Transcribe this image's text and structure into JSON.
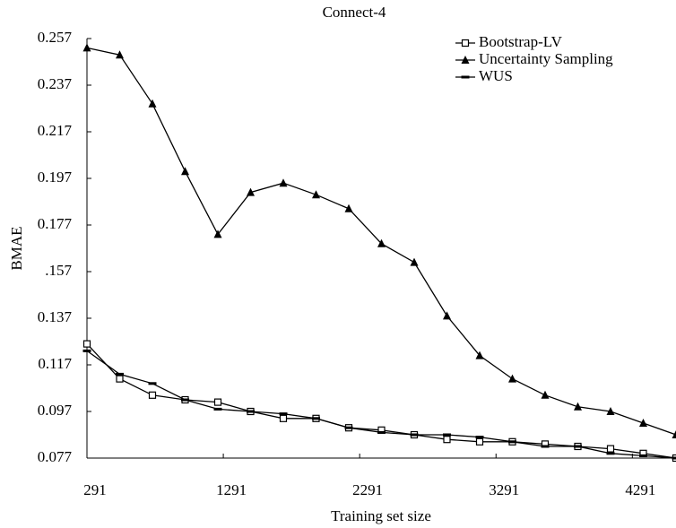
{
  "chart_data": {
    "type": "line",
    "title": "Connect-4",
    "xlabel": "Training set size",
    "ylabel": "BMAE",
    "x": [
      291,
      531,
      771,
      1011,
      1251,
      1491,
      1731,
      1971,
      2211,
      2451,
      2691,
      2931,
      3171,
      3411,
      3651,
      3891,
      4131,
      4371,
      4611
    ],
    "series": [
      {
        "name": "Bootstrap-LV",
        "color": "#000000",
        "marker": "square-open",
        "values": [
          0.126,
          0.111,
          0.104,
          0.102,
          0.101,
          0.097,
          0.094,
          0.094,
          0.09,
          0.089,
          0.087,
          0.085,
          0.084,
          0.084,
          0.083,
          0.082,
          0.081,
          0.079,
          0.077
        ]
      },
      {
        "name": "Uncertainty Sampling",
        "color": "#000000",
        "marker": "triangle",
        "values": [
          0.253,
          0.25,
          0.229,
          0.2,
          0.173,
          0.191,
          0.195,
          0.19,
          0.184,
          0.169,
          0.161,
          0.138,
          0.121,
          0.111,
          0.104,
          0.099,
          0.097,
          0.092,
          0.087
        ]
      },
      {
        "name": "WUS",
        "color": "#000000",
        "marker": "dash",
        "values": [
          0.123,
          0.113,
          0.109,
          0.102,
          0.098,
          0.097,
          0.096,
          0.094,
          0.09,
          0.088,
          0.087,
          0.087,
          0.086,
          0.084,
          0.082,
          0.082,
          0.079,
          0.078,
          0.077
        ]
      }
    ],
    "xlim": [
      291,
      4611
    ],
    "xticks": [
      291,
      1291,
      2291,
      3291,
      4291
    ],
    "ylim": [
      0.077,
      0.257
    ],
    "yticks": [
      0.077,
      0.097,
      0.117,
      0.137,
      {
        "value": 0.157,
        "label": ".157"
      },
      0.177,
      0.197,
      0.217,
      0.237,
      0.257
    ],
    "legend": "upper right",
    "grid": false
  }
}
